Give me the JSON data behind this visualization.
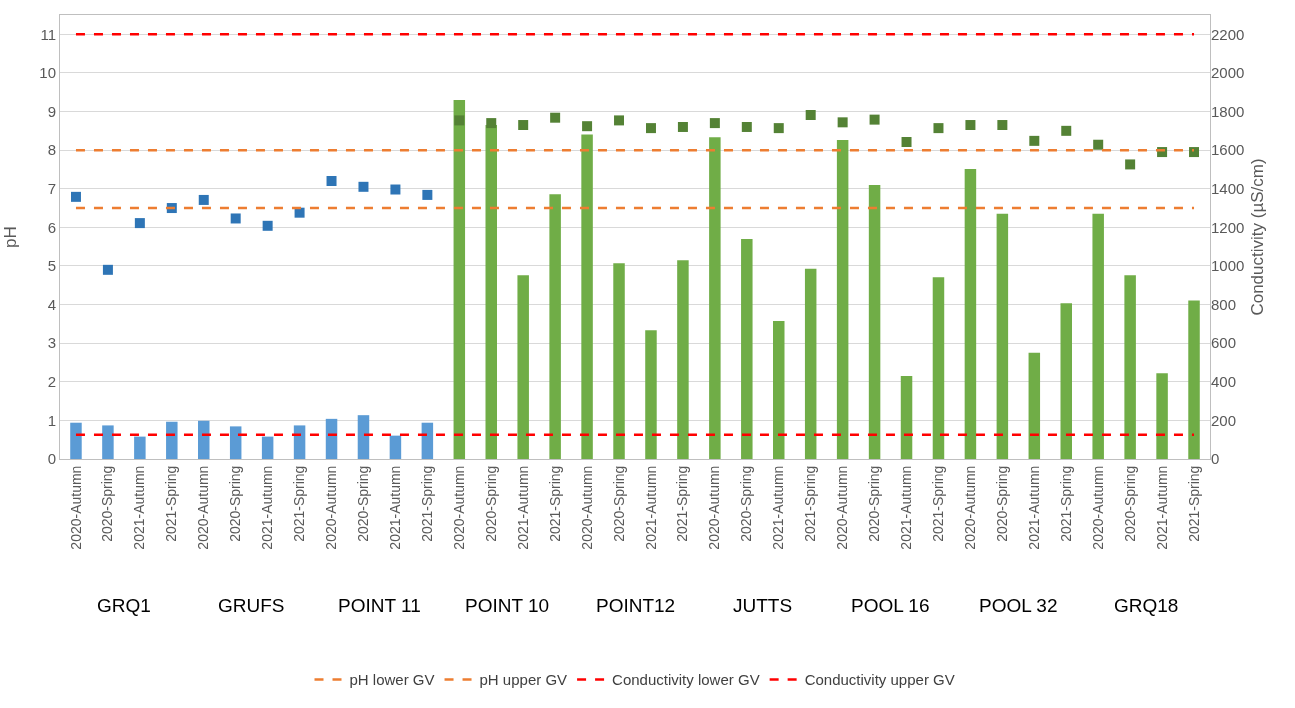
{
  "chart_data": {
    "type": "bar",
    "ylabel": "pH",
    "y2label": "Conductivity (µS/cm)",
    "categories": [
      "2020-Autumn",
      "2020-Spring",
      "2021-Autumn",
      "2021-Spring",
      "2020-Autumn",
      "2020-Spring",
      "2021-Autumn",
      "2021-Spring",
      "2020-Autumn",
      "2020-Spring",
      "2021-Autumn",
      "2021-Spring",
      "2020-Autumn",
      "2020-Spring",
      "2021-Autumn",
      "2021-Spring",
      "2020-Autumn",
      "2020-Spring",
      "2021-Autumn",
      "2021-Spring",
      "2020-Autumn",
      "2020-Spring",
      "2021-Autumn",
      "2021-Spring",
      "2020-Autumn",
      "2020-Spring",
      "2021-Autumn",
      "2021-Spring",
      "2020-Autumn",
      "2020-Spring",
      "2021-Autumn",
      "2021-Spring",
      "2020-Autumn",
      "2020-Spring",
      "2021-Autumn",
      "2021-Spring"
    ],
    "series": [
      {
        "axis": "y2",
        "colors": [
          "#5b9bd5",
          "#5b9bd5",
          "#5b9bd5",
          "#5b9bd5",
          "#5b9bd5",
          "#5b9bd5",
          "#5b9bd5",
          "#5b9bd5",
          "#5b9bd5",
          "#5b9bd5",
          "#5b9bd5",
          "#5b9bd5",
          "#70ad47",
          "#70ad47",
          "#70ad47",
          "#70ad47",
          "#70ad47",
          "#70ad47",
          "#70ad47",
          "#70ad47",
          "#70ad47",
          "#70ad47",
          "#70ad47",
          "#70ad47",
          "#70ad47",
          "#70ad47",
          "#70ad47",
          "#70ad47",
          "#70ad47",
          "#70ad47",
          "#70ad47",
          "#70ad47",
          "#70ad47",
          "#70ad47",
          "#70ad47",
          "#70ad47"
        ],
        "values": [
          188,
          174,
          116,
          193,
          198,
          169,
          116,
          174,
          208,
          227,
          121,
          188,
          1860,
          1730,
          952,
          1372,
          1681,
          1014,
          667,
          1029,
          1667,
          1140,
          715,
          986,
          1652,
          1420,
          430,
          942,
          1502,
          1271,
          551,
          807,
          1271,
          952,
          444,
          821
        ]
      },
      {
        "type": "scatter",
        "axis": "y",
        "marker": "square",
        "colors": [
          "#2e75b6",
          "#2e75b6",
          "#2e75b6",
          "#2e75b6",
          "#2e75b6",
          "#2e75b6",
          "#2e75b6",
          "#2e75b6",
          "#2e75b6",
          "#2e75b6",
          "#2e75b6",
          "#2e75b6",
          "#548235",
          "#548235",
          "#548235",
          "#548235",
          "#548235",
          "#548235",
          "#548235",
          "#548235",
          "#548235",
          "#548235",
          "#548235",
          "#548235",
          "#548235",
          "#548235",
          "#548235",
          "#548235",
          "#548235",
          "#548235",
          "#548235",
          "#548235",
          "#548235",
          "#548235",
          "#548235",
          "#548235"
        ],
        "values": [
          6.79,
          4.9,
          6.11,
          6.5,
          6.71,
          6.23,
          6.04,
          6.38,
          7.2,
          7.05,
          6.98,
          6.84,
          8.77,
          8.7,
          8.65,
          8.84,
          8.62,
          8.77,
          8.57,
          8.6,
          8.7,
          8.6,
          8.57,
          8.91,
          8.72,
          8.79,
          8.21,
          8.57,
          8.65,
          8.65,
          8.24,
          8.5,
          8.14,
          7.63,
          7.95,
          7.95
        ]
      }
    ],
    "ref_lines": [
      {
        "axis": "y",
        "value": 6.5,
        "label": "pH lower GV",
        "color": "#ed7d31",
        "line_style": "dashed"
      },
      {
        "axis": "y",
        "value": 8,
        "label": "pH upper GV",
        "color": "#ed7d31",
        "line_style": "dashed"
      },
      {
        "axis": "y2",
        "value": 125,
        "label": "Conductivity lower GV",
        "color": "#ff0000",
        "line_style": "dashed"
      },
      {
        "axis": "y2",
        "value": 2200,
        "label": "Conductivity upper GV",
        "color": "#ff0000",
        "line_style": "dashed"
      }
    ],
    "annotations": [
      "GRQ1",
      "GRUFS",
      "POINT 11",
      "POINT 10",
      "POINT12",
      "JUTTS",
      "POOL 16",
      "POOL 32",
      "GRQ18"
    ],
    "ylim": [
      0,
      11.5
    ],
    "yticks": [
      0,
      1,
      2,
      3,
      4,
      5,
      6,
      7,
      8,
      9,
      10,
      11
    ],
    "y2lim": [
      0,
      2300
    ],
    "y2ticks": [
      0,
      200,
      400,
      600,
      800,
      1000,
      1200,
      1400,
      1600,
      1800,
      2000,
      2200
    ],
    "grid": "y",
    "legend": "bottom"
  }
}
